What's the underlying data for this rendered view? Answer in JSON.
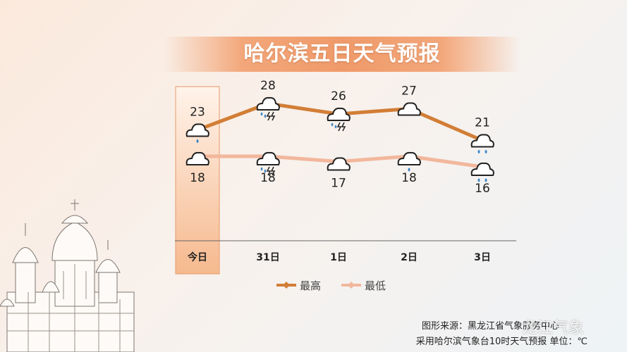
{
  "header": {
    "title": "哈尔滨五日天气预报"
  },
  "footer": {
    "source": "图形来源：黑龙江省气象服务中心",
    "note": "采用哈尔滨气象台10时天气预报 单位：℃"
  },
  "watermark": {
    "text": "龙江气象"
  },
  "colors": {
    "high": "#d27e36",
    "low": "#f2b79c",
    "highlight": "#f6b98e"
  },
  "chart_data": {
    "type": "line",
    "title": "哈尔滨五日天气预报",
    "categories": [
      "今日",
      "31日",
      "1日",
      "2日",
      "3日"
    ],
    "highlight_category": "今日",
    "series": [
      {
        "name": "最高",
        "values": [
          23,
          28,
          26,
          27,
          21
        ],
        "icons": [
          "shower-icon",
          "thunderstorm-icon",
          "thunderstorm-icon",
          "cloudy-icon",
          "rain-icon"
        ]
      },
      {
        "name": "最低",
        "values": [
          18,
          18,
          17,
          18,
          16
        ],
        "icons": [
          "cloudy-icon",
          "thunderstorm-icon",
          "cloudy-icon",
          "shower-icon",
          "rain-icon"
        ]
      }
    ],
    "unit": "℃",
    "legend_position": "bottom-center",
    "grid": false
  }
}
